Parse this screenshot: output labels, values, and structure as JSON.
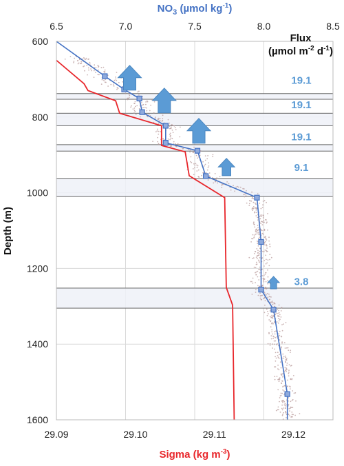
{
  "chart_data": {
    "type": "line",
    "top_axis": {
      "label_prefix": "NO",
      "label_sub": "3",
      "label_suffix": " (µmol kg",
      "label_sup": "-1",
      "label_end": ")",
      "range": [
        6.5,
        8.5
      ],
      "ticks": [
        "6.5",
        "7.0",
        "7.5",
        "8.0",
        "8.5"
      ],
      "color": "#4472c4"
    },
    "bottom_axis": {
      "label_main": "Sigma (kg m",
      "label_sup": "-3",
      "label_end": ")",
      "range": [
        29.09,
        29.125
      ],
      "ticks": [
        "29.09",
        "29.10",
        "29.11",
        "29.12"
      ],
      "color": "#e8262b"
    },
    "y_axis": {
      "label": "Depth (m)",
      "range": [
        600,
        1600
      ],
      "ticks": [
        "600",
        "800",
        "1000",
        "1200",
        "1400",
        "1600"
      ],
      "inverted": true
    },
    "flux_header": {
      "line1": "Flux",
      "line2_main": "(µmol m",
      "line2_sup1": "-2",
      "line2_mid": " d",
      "line2_sup2": "-1",
      "line2_end": ")"
    },
    "grid": true,
    "series": [
      {
        "axis": "top",
        "color": "#4472c4",
        "marker": "square",
        "points": [
          {
            "x": 6.5,
            "y": 600
          },
          {
            "x": 6.85,
            "y": 692
          },
          {
            "x": 6.99,
            "y": 727
          },
          {
            "x": 7.1,
            "y": 751
          },
          {
            "x": 7.12,
            "y": 787
          },
          {
            "x": 7.29,
            "y": 823
          },
          {
            "x": 7.29,
            "y": 868
          },
          {
            "x": 7.52,
            "y": 889
          },
          {
            "x": 7.58,
            "y": 956
          },
          {
            "x": 7.95,
            "y": 1013
          },
          {
            "x": 7.98,
            "y": 1130
          },
          {
            "x": 7.98,
            "y": 1256
          },
          {
            "x": 8.07,
            "y": 1309
          },
          {
            "x": 8.17,
            "y": 1532
          },
          {
            "x": 8.17,
            "y": 1600
          }
        ]
      },
      {
        "axis": "bottom",
        "color": "#e8262b",
        "marker": "none",
        "points": [
          {
            "x": 29.09,
            "y": 650
          },
          {
            "x": 29.0935,
            "y": 712
          },
          {
            "x": 29.094,
            "y": 730
          },
          {
            "x": 29.0975,
            "y": 757
          },
          {
            "x": 29.098,
            "y": 790
          },
          {
            "x": 29.1033,
            "y": 823
          },
          {
            "x": 29.1033,
            "y": 875
          },
          {
            "x": 29.1063,
            "y": 892
          },
          {
            "x": 29.1068,
            "y": 955
          },
          {
            "x": 29.1113,
            "y": 1013
          },
          {
            "x": 29.1115,
            "y": 1250
          },
          {
            "x": 29.1123,
            "y": 1297
          },
          {
            "x": 29.1125,
            "y": 1600
          }
        ]
      }
    ],
    "flux_layers": [
      {
        "y_top": 738,
        "y_bottom": 753
      },
      {
        "y_top": 790,
        "y_bottom": 823
      },
      {
        "y_top": 873,
        "y_bottom": 890
      },
      {
        "y_top": 962,
        "y_bottom": 1010
      },
      {
        "y_top": 1252,
        "y_bottom": 1305
      }
    ],
    "flux_labels": [
      {
        "text": "19.1",
        "y": 703
      },
      {
        "text": "19.1",
        "y": 768
      },
      {
        "text": "19.1",
        "y": 852
      },
      {
        "text": "9.1",
        "y": 933
      },
      {
        "text": "3.8",
        "y": 1235
      }
    ],
    "flux_arrows": [
      {
        "x": 7.03,
        "y_base": 729,
        "size": 1.0
      },
      {
        "x": 7.28,
        "y_base": 789,
        "size": 1.0
      },
      {
        "x": 7.53,
        "y_base": 869,
        "size": 1.0
      },
      {
        "x": 7.73,
        "y_base": 955,
        "size": 0.7
      },
      {
        "x": 8.07,
        "y_base": 1254,
        "size": 0.5
      }
    ]
  }
}
